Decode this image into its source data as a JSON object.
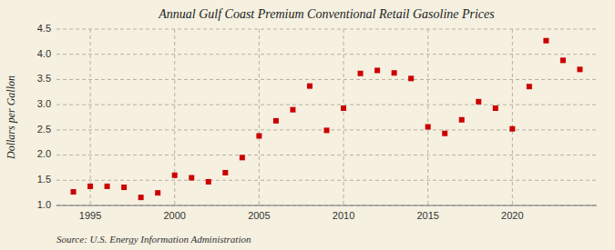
{
  "chart_data": {
    "type": "scatter",
    "title": "Annual Gulf Coast Premium Conventional Retail Gasoline Prices",
    "y_label": "Dollars per Gallon",
    "annotations": [
      "Source: U.S. Energy Information Administration"
    ],
    "x": [
      1994,
      1995,
      1996,
      1997,
      1998,
      1999,
      2000,
      2001,
      2002,
      2003,
      2004,
      2005,
      2006,
      2007,
      2008,
      2009,
      2010,
      2011,
      2012,
      2013,
      2014,
      2015,
      2016,
      2017,
      2018,
      2019,
      2020,
      2021,
      2022,
      2023,
      2024
    ],
    "values": [
      1.27,
      1.38,
      1.38,
      1.36,
      1.16,
      1.25,
      1.6,
      1.55,
      1.47,
      1.65,
      1.95,
      2.38,
      2.68,
      2.9,
      3.37,
      2.49,
      2.93,
      3.62,
      3.68,
      3.63,
      3.52,
      2.56,
      2.43,
      2.7,
      3.06,
      2.93,
      2.52,
      3.36,
      4.27,
      3.88,
      3.7
    ],
    "color": "#cc0000",
    "marker": "square",
    "xlim": [
      1993,
      2025
    ],
    "ylim": [
      1.0,
      4.5
    ],
    "xticks": [
      1995,
      2000,
      2005,
      2010,
      2015,
      2020
    ],
    "yticks": [
      {
        "value": 1.0,
        "label": "1.0"
      },
      1.5,
      {
        "value": 2.0,
        "label": "2.0"
      },
      2.5,
      {
        "value": 3.0,
        "label": "3.0"
      },
      3.5,
      {
        "value": 4.0,
        "label": "4.0"
      },
      4.5
    ],
    "grid": true
  }
}
